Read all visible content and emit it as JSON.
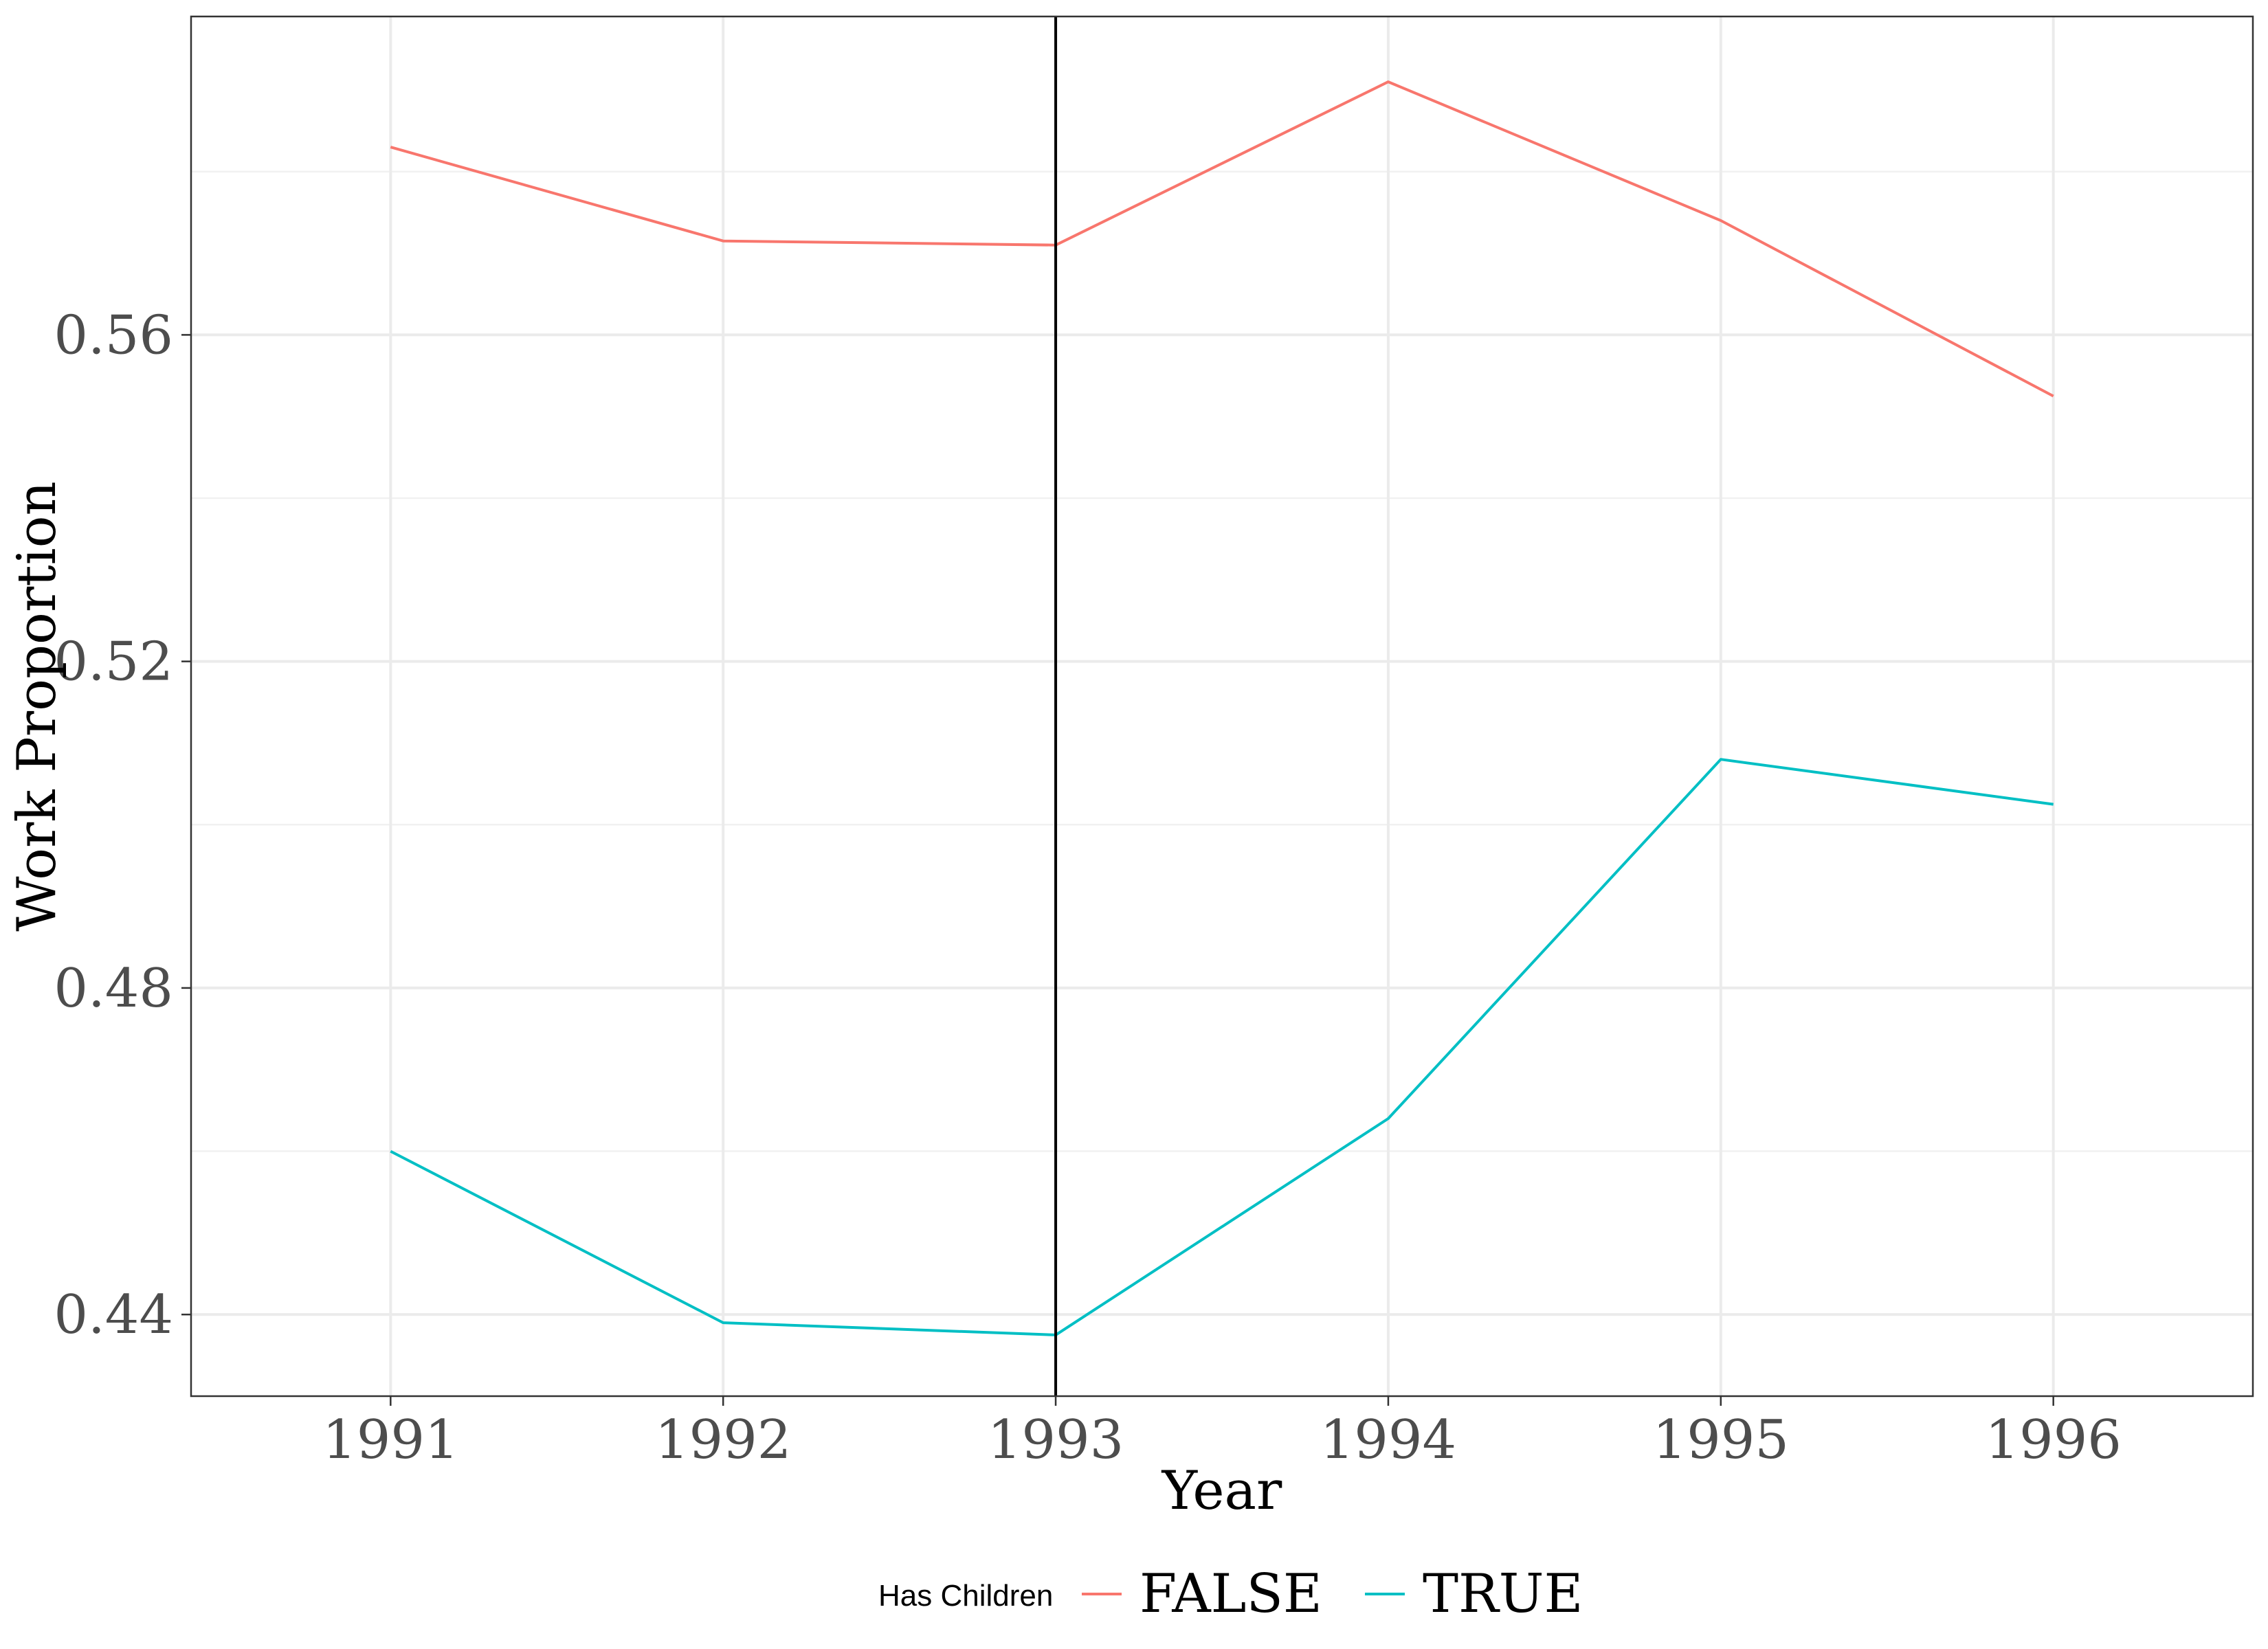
{
  "chart_data": {
    "type": "line",
    "title": "",
    "xlabel": "Year",
    "ylabel": "Work Proportion",
    "x": [
      1991,
      1992,
      1993,
      1994,
      1995,
      1996
    ],
    "x_ticks": [
      "1991",
      "1992",
      "1993",
      "1994",
      "1995",
      "1996"
    ],
    "y_ticks": [
      "0.44",
      "0.48",
      "0.52",
      "0.56"
    ],
    "y_tick_values": [
      0.44,
      0.48,
      0.52,
      0.56
    ],
    "xlim": [
      1990.4,
      1996.6
    ],
    "ylim": [
      0.43,
      0.599
    ],
    "grid": true,
    "legend_position": "bottom",
    "legend_title": "Has Children",
    "vline_x": 1993,
    "series": [
      {
        "name": "FALSE",
        "color": "#F8766D",
        "values": [
          0.583,
          0.5715,
          0.571,
          0.591,
          0.574,
          0.5525
        ]
      },
      {
        "name": "TRUE",
        "color": "#00BFC4",
        "values": [
          0.46,
          0.439,
          0.4375,
          0.464,
          0.508,
          0.5025
        ]
      }
    ]
  }
}
